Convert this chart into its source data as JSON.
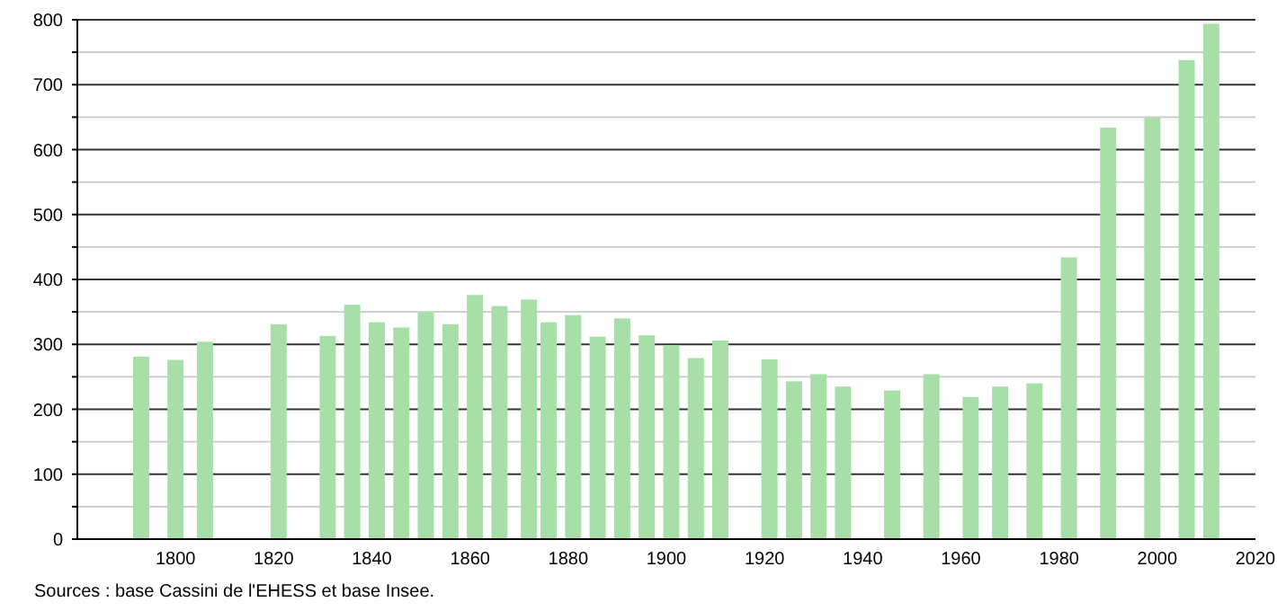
{
  "chart_data": {
    "type": "bar",
    "x": [
      1793,
      1800,
      1806,
      1821,
      1831,
      1836,
      1841,
      1846,
      1851,
      1856,
      1861,
      1866,
      1872,
      1876,
      1881,
      1886,
      1891,
      1896,
      1901,
      1906,
      1911,
      1921,
      1926,
      1931,
      1936,
      1946,
      1954,
      1962,
      1968,
      1975,
      1982,
      1990,
      1999,
      2006,
      2011
    ],
    "values": [
      281,
      276,
      304,
      331,
      313,
      361,
      334,
      326,
      350,
      331,
      376,
      359,
      369,
      334,
      345,
      312,
      340,
      314,
      299,
      279,
      306,
      277,
      243,
      254,
      235,
      229,
      254,
      219,
      235,
      240,
      434,
      634,
      650,
      738,
      794
    ],
    "color": "#a8dfa8",
    "xlim": [
      1780,
      2020
    ],
    "xticks": [
      1800,
      1820,
      1840,
      1860,
      1880,
      1900,
      1920,
      1940,
      1960,
      1980,
      2000,
      2020
    ],
    "ylim": [
      0,
      800
    ],
    "yticks": [
      0,
      {
        "value": 50,
        "label": null
      },
      100,
      {
        "value": 150,
        "label": null
      },
      200,
      {
        "value": 250,
        "label": null
      },
      300,
      {
        "value": 350,
        "label": null
      },
      400,
      {
        "value": 450,
        "label": null
      },
      500,
      {
        "value": 550,
        "label": null
      },
      600,
      {
        "value": 650,
        "label": null
      },
      700,
      {
        "value": 750,
        "label": null
      },
      800
    ],
    "grid": true,
    "annotations": [
      "Sources : base Cassini de l'EHESS et base Insee."
    ]
  }
}
